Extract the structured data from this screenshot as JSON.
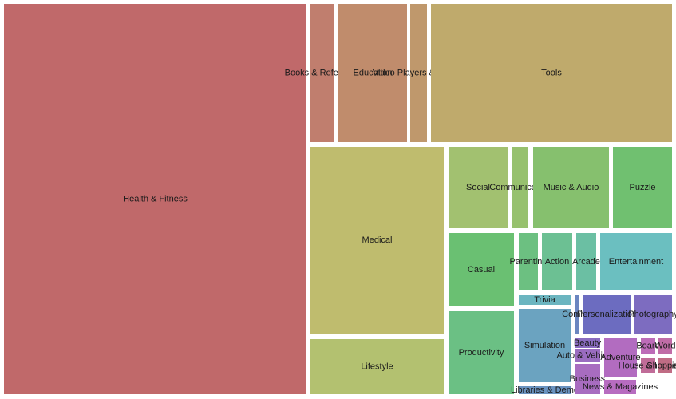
{
  "chart_data": {
    "type": "treemap",
    "title": "",
    "tiles": [
      {
        "label": "Health & Fitness",
        "color": "#c0696a"
      },
      {
        "label": "Books & Reference",
        "color": "#c07e6e"
      },
      {
        "label": "Education",
        "color": "#c08c6c"
      },
      {
        "label": "Video Players & Editors",
        "color": "#bf986c"
      },
      {
        "label": "Tools",
        "color": "#bfaa6c"
      },
      {
        "label": "Medical",
        "color": "#bfbc6e"
      },
      {
        "label": "Lifestyle",
        "color": "#b3c170"
      },
      {
        "label": "Social",
        "color": "#a2c170"
      },
      {
        "label": "Communication",
        "color": "#97c16e"
      },
      {
        "label": "Music & Audio",
        "color": "#86c06e"
      },
      {
        "label": "Puzzle",
        "color": "#70c070"
      },
      {
        "label": "Casual",
        "color": "#6ac072"
      },
      {
        "label": "Parenting",
        "color": "#6cc081"
      },
      {
        "label": "Action",
        "color": "#6cc093"
      },
      {
        "label": "Arcade",
        "color": "#6bbfa3"
      },
      {
        "label": "Entertainment",
        "color": "#6bbfc0"
      },
      {
        "label": "Productivity",
        "color": "#6bc084"
      },
      {
        "label": "Trivia",
        "color": "#6bb5c0"
      },
      {
        "label": "Simulation",
        "color": "#6ba3c0"
      },
      {
        "label": "Libraries & Demo",
        "color": "#6a93c0"
      },
      {
        "label": "Comics",
        "color": "#6b86c0"
      },
      {
        "label": "Personalization",
        "color": "#6c6cc0"
      },
      {
        "label": "Photography",
        "color": "#7d6cc0"
      },
      {
        "label": "Beauty",
        "color": "#8a6cc0"
      },
      {
        "label": "Auto & Vehicles",
        "color": "#9a6cc0"
      },
      {
        "label": "Business",
        "color": "#a86cc0"
      },
      {
        "label": "Adventure",
        "color": "#b26cc0"
      },
      {
        "label": "Board",
        "color": "#bd6cb8"
      },
      {
        "label": "Word",
        "color": "#c06ca6"
      },
      {
        "label": "House & Home",
        "color": "#c06c98"
      },
      {
        "label": "Shopping",
        "color": "#c06c84"
      },
      {
        "label": "News & Magazines",
        "color": "#b76cc0"
      }
    ]
  }
}
